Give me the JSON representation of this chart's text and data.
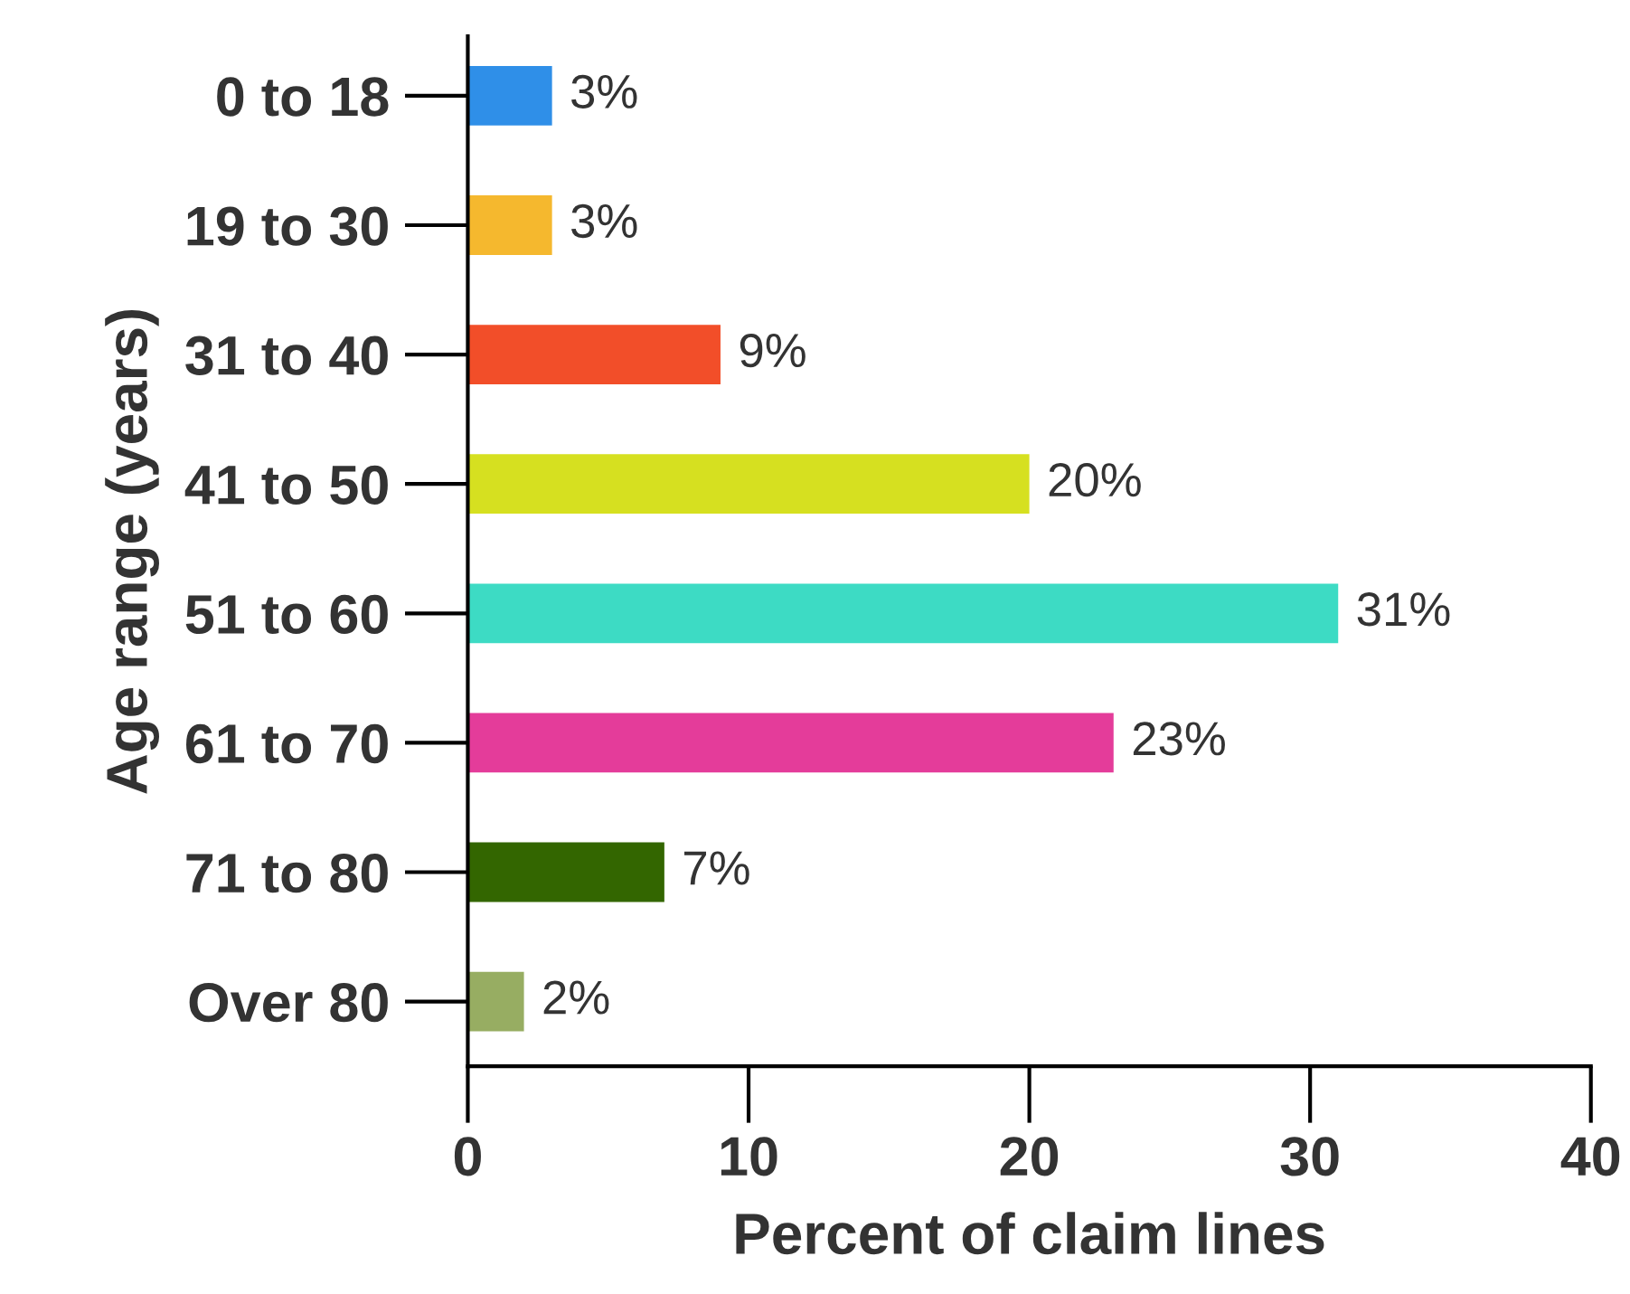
{
  "chart_data": {
    "type": "bar",
    "orientation": "horizontal",
    "xlabel": "Percent of claim lines",
    "ylabel": "Age range (years)",
    "categories": [
      "0 to 18",
      "19 to 30",
      "31 to 40",
      "41 to 50",
      "51 to 60",
      "61 to 70",
      "71 to 80",
      "Over 80"
    ],
    "values": [
      3,
      3,
      9,
      20,
      31,
      23,
      7,
      2
    ],
    "value_labels": [
      "3%",
      "3%",
      "9%",
      "20%",
      "31%",
      "23%",
      "7%",
      "2%"
    ],
    "colors": [
      "#2f8fe8",
      "#f5b82e",
      "#f24e29",
      "#d6e020",
      "#3ddbc4",
      "#e43c9a",
      "#336600",
      "#97ad62"
    ],
    "xlim": [
      0,
      40
    ],
    "xticks": [
      0,
      10,
      20,
      30,
      40
    ],
    "grid": false,
    "legend": false
  }
}
